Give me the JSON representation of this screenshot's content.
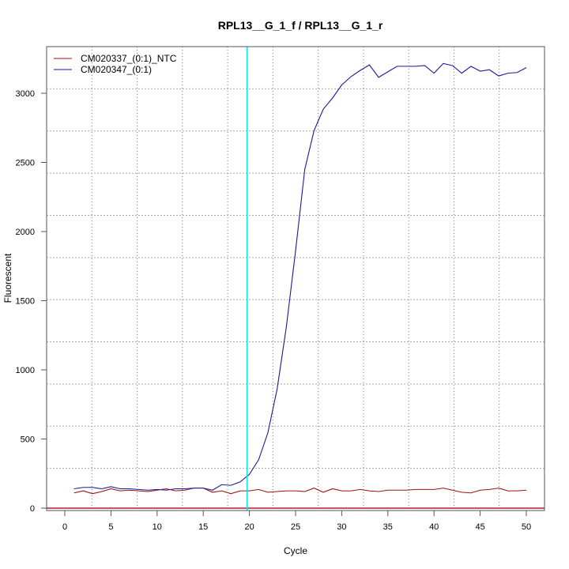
{
  "chart_data": {
    "type": "line",
    "title": "RPL13__G_1_f / RPL13__G_1_r",
    "xlabel": "Cycle",
    "ylabel": "Fluorescent",
    "xlim": [
      -2,
      52
    ],
    "ylim": [
      -20,
      3340
    ],
    "xticks": [
      0,
      5,
      10,
      15,
      20,
      25,
      30,
      35,
      40,
      45,
      50
    ],
    "yticks": [
      0,
      500,
      1000,
      1500,
      2000,
      2500,
      3000
    ],
    "grid": true,
    "legend_position": "top-left",
    "vline": {
      "x": 19.75,
      "color": "#00e5ee"
    },
    "hline": {
      "y": 0,
      "color": "#b22222"
    },
    "x": [
      1,
      2,
      3,
      4,
      5,
      6,
      7,
      8,
      9,
      10,
      11,
      12,
      13,
      14,
      15,
      16,
      17,
      18,
      19,
      20,
      21,
      22,
      23,
      24,
      25,
      26,
      27,
      28,
      29,
      30,
      31,
      32,
      33,
      34,
      35,
      36,
      37,
      38,
      39,
      40,
      41,
      42,
      43,
      44,
      45,
      46,
      47,
      48,
      49,
      50
    ],
    "series": [
      {
        "name": "CM020337_(0:1)_NTC",
        "color": "#a01010",
        "values": [
          110,
          125,
          105,
          120,
          140,
          125,
          130,
          125,
          120,
          130,
          140,
          125,
          130,
          145,
          145,
          115,
          125,
          105,
          125,
          125,
          135,
          115,
          120,
          125,
          125,
          120,
          145,
          115,
          140,
          125,
          125,
          135,
          125,
          120,
          130,
          130,
          130,
          135,
          135,
          135,
          145,
          130,
          115,
          110,
          130,
          135,
          145,
          125,
          125,
          130
        ]
      },
      {
        "name": "CM020347_(0:1)",
        "color": "#1a1a9a",
        "values": [
          140,
          150,
          150,
          140,
          155,
          140,
          140,
          135,
          130,
          135,
          130,
          140,
          140,
          145,
          145,
          130,
          170,
          165,
          190,
          245,
          350,
          545,
          860,
          1310,
          1860,
          2450,
          2730,
          2885,
          2965,
          3060,
          3120,
          3165,
          3205,
          3115,
          3155,
          3195,
          3195,
          3195,
          3200,
          3145,
          3215,
          3200,
          3145,
          3195,
          3160,
          3170,
          3125,
          3145,
          3150,
          3185
        ]
      }
    ]
  }
}
